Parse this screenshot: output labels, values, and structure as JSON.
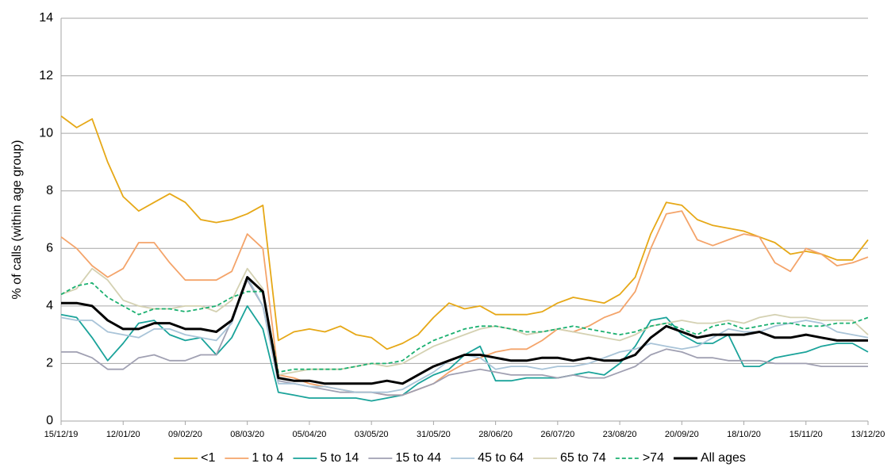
{
  "chart_data": {
    "type": "line",
    "y_label": "% of calls (within age group)",
    "x": [
      "15/12/19",
      "22/12/19",
      "29/12/19",
      "05/01/20",
      "12/01/20",
      "19/01/20",
      "26/01/20",
      "02/02/20",
      "09/02/20",
      "16/02/20",
      "23/02/20",
      "01/03/20",
      "08/03/20",
      "15/03/20",
      "22/03/20",
      "29/03/20",
      "05/04/20",
      "12/04/20",
      "19/04/20",
      "26/04/20",
      "03/05/20",
      "10/05/20",
      "17/05/20",
      "24/05/20",
      "31/05/20",
      "07/06/20",
      "14/06/20",
      "21/06/20",
      "28/06/20",
      "05/07/20",
      "12/07/20",
      "19/07/20",
      "26/07/20",
      "02/08/20",
      "09/08/20",
      "16/08/20",
      "23/08/20",
      "30/08/20",
      "06/09/20",
      "13/09/20",
      "20/09/20",
      "27/09/20",
      "04/10/20",
      "11/10/20",
      "18/10/20",
      "25/10/20",
      "01/11/20",
      "08/11/20",
      "15/11/20",
      "22/11/20",
      "29/11/20",
      "06/12/20",
      "13/12/20"
    ],
    "xlim": [
      "15/12/19",
      "13/12/20"
    ],
    "xticks": [
      "15/12/19",
      "12/01/20",
      "09/02/20",
      "08/03/20",
      "05/04/20",
      "03/05/20",
      "31/05/20",
      "28/06/20",
      "26/07/20",
      "23/08/20",
      "20/09/20",
      "18/10/20",
      "15/11/20",
      "13/12/20"
    ],
    "ylim": [
      0,
      14
    ],
    "yticks": [
      0,
      2,
      4,
      6,
      8,
      10,
      12,
      14
    ],
    "grid": true,
    "legend": "bottom",
    "series": [
      {
        "name": "<1",
        "color": "#e6a817",
        "values": [
          10.6,
          10.2,
          10.5,
          9.0,
          7.8,
          7.3,
          7.6,
          7.9,
          7.6,
          7.0,
          6.9,
          7.0,
          7.2,
          7.5,
          2.8,
          3.1,
          3.2,
          3.1,
          3.3,
          3.0,
          2.9,
          2.5,
          2.7,
          3.0,
          3.6,
          4.1,
          3.9,
          4.0,
          3.7,
          3.7,
          3.7,
          3.8,
          4.1,
          4.3,
          4.2,
          4.1,
          4.4,
          5.0,
          6.5,
          7.6,
          7.5,
          7.0,
          6.8,
          6.7,
          6.6,
          6.4,
          6.2,
          5.8,
          5.9,
          5.8,
          5.6,
          5.6,
          6.3
        ]
      },
      {
        "name": "1 to 4",
        "color": "#f4a46a",
        "values": [
          6.4,
          6.0,
          5.4,
          5.0,
          5.3,
          6.2,
          6.2,
          5.5,
          4.9,
          4.9,
          4.9,
          5.2,
          6.5,
          6.0,
          1.6,
          1.5,
          1.3,
          1.2,
          1.1,
          1.0,
          1.0,
          0.9,
          0.9,
          1.1,
          1.3,
          1.7,
          2.0,
          2.2,
          2.4,
          2.5,
          2.5,
          2.8,
          3.2,
          3.1,
          3.3,
          3.6,
          3.8,
          4.5,
          6.0,
          7.2,
          7.3,
          6.3,
          6.1,
          6.3,
          6.5,
          6.4,
          5.5,
          5.2,
          6.0,
          5.8,
          5.4,
          5.5,
          5.7
        ]
      },
      {
        "name": "5 to 14",
        "color": "#1aa39a",
        "values": [
          3.7,
          3.6,
          2.9,
          2.1,
          2.7,
          3.4,
          3.5,
          3.0,
          2.8,
          2.9,
          2.3,
          2.9,
          4.0,
          3.2,
          1.0,
          0.9,
          0.8,
          0.8,
          0.8,
          0.8,
          0.7,
          0.8,
          0.9,
          1.3,
          1.6,
          1.8,
          2.3,
          2.6,
          1.4,
          1.4,
          1.5,
          1.5,
          1.5,
          1.6,
          1.7,
          1.6,
          2.0,
          2.6,
          3.5,
          3.6,
          3.0,
          2.7,
          2.7,
          3.0,
          1.9,
          1.9,
          2.2,
          2.3,
          2.4,
          2.6,
          2.7,
          2.7,
          2.4
        ]
      },
      {
        "name": "15 to 44",
        "color": "#a0a0b2",
        "values": [
          2.4,
          2.4,
          2.2,
          1.8,
          1.8,
          2.2,
          2.3,
          2.1,
          2.1,
          2.3,
          2.3,
          3.5,
          4.9,
          4.0,
          1.4,
          1.3,
          1.2,
          1.1,
          1.0,
          1.0,
          1.0,
          0.9,
          0.9,
          1.1,
          1.3,
          1.6,
          1.7,
          1.8,
          1.7,
          1.6,
          1.6,
          1.6,
          1.5,
          1.6,
          1.5,
          1.5,
          1.7,
          1.9,
          2.3,
          2.5,
          2.4,
          2.2,
          2.2,
          2.1,
          2.1,
          2.1,
          2.0,
          2.0,
          2.0,
          1.9,
          1.9,
          1.9,
          1.9
        ]
      },
      {
        "name": "45 to 64",
        "color": "#a9c4d8",
        "values": [
          3.6,
          3.5,
          3.5,
          3.1,
          3.0,
          2.9,
          3.2,
          3.2,
          3.0,
          2.9,
          2.8,
          3.4,
          5.0,
          4.0,
          1.3,
          1.3,
          1.2,
          1.2,
          1.1,
          1.0,
          1.0,
          1.0,
          1.1,
          1.4,
          1.7,
          2.1,
          2.3,
          2.2,
          1.8,
          1.9,
          1.9,
          1.8,
          1.9,
          1.9,
          2.0,
          2.2,
          2.4,
          2.5,
          2.7,
          2.6,
          2.5,
          2.6,
          2.9,
          3.2,
          3.1,
          3.1,
          3.3,
          3.4,
          3.5,
          3.4,
          3.1,
          3.0,
          2.9
        ]
      },
      {
        "name": "65 to 74",
        "color": "#d4d1b2",
        "values": [
          4.4,
          4.6,
          5.3,
          4.9,
          4.2,
          4.0,
          3.9,
          3.9,
          4.0,
          4.0,
          3.8,
          4.2,
          5.3,
          4.6,
          1.6,
          1.7,
          1.8,
          1.8,
          1.8,
          1.9,
          2.0,
          1.9,
          2.0,
          2.3,
          2.6,
          2.8,
          3.0,
          3.2,
          3.3,
          3.2,
          3.0,
          3.1,
          3.2,
          3.1,
          3.0,
          2.9,
          2.8,
          3.0,
          3.3,
          3.4,
          3.5,
          3.4,
          3.4,
          3.5,
          3.4,
          3.6,
          3.7,
          3.6,
          3.6,
          3.5,
          3.5,
          3.5,
          3.0
        ]
      },
      {
        "name": ">74",
        "color": "#1bb070",
        "dashed": true,
        "values": [
          4.4,
          4.7,
          4.8,
          4.3,
          4.0,
          3.7,
          3.9,
          3.9,
          3.8,
          3.9,
          4.0,
          4.3,
          4.5,
          4.5,
          1.7,
          1.8,
          1.8,
          1.8,
          1.8,
          1.9,
          2.0,
          2.0,
          2.1,
          2.5,
          2.8,
          3.0,
          3.2,
          3.3,
          3.3,
          3.2,
          3.1,
          3.1,
          3.2,
          3.3,
          3.2,
          3.1,
          3.0,
          3.1,
          3.3,
          3.4,
          3.2,
          3.0,
          3.3,
          3.4,
          3.2,
          3.3,
          3.4,
          3.4,
          3.3,
          3.3,
          3.4,
          3.4,
          3.6
        ]
      },
      {
        "name": "All ages",
        "color": "#000000",
        "width": 3,
        "values": [
          4.1,
          4.1,
          4.0,
          3.5,
          3.2,
          3.2,
          3.4,
          3.4,
          3.2,
          3.2,
          3.1,
          3.5,
          5.0,
          4.5,
          1.5,
          1.4,
          1.4,
          1.3,
          1.3,
          1.3,
          1.3,
          1.4,
          1.3,
          1.6,
          1.9,
          2.1,
          2.3,
          2.3,
          2.2,
          2.1,
          2.1,
          2.2,
          2.2,
          2.1,
          2.2,
          2.1,
          2.1,
          2.3,
          2.9,
          3.3,
          3.1,
          2.9,
          3.0,
          3.0,
          3.0,
          3.1,
          2.9,
          2.9,
          3.0,
          2.9,
          2.8,
          2.8,
          2.8
        ]
      }
    ]
  }
}
